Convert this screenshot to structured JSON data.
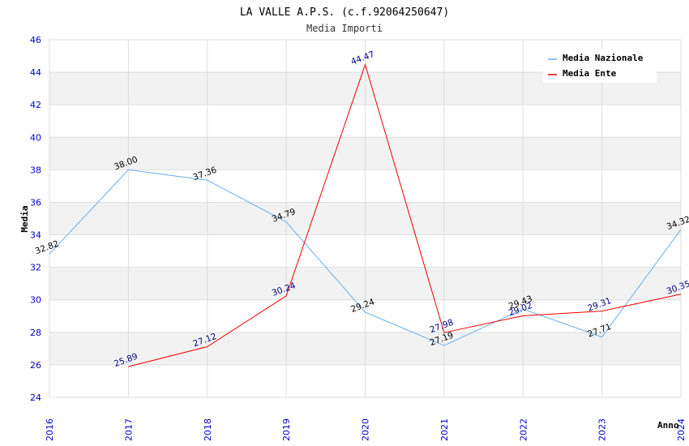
{
  "chart_data": {
    "type": "line",
    "title": "LA VALLE A.P.S. (c.f.92064250647)",
    "subtitle": "Media Importi",
    "xlabel": "Anno",
    "ylabel": "Media",
    "ylim": [
      24,
      46
    ],
    "ytick_step": 2,
    "yticks": [
      "24",
      "26",
      "28",
      "30",
      "32",
      "34",
      "36",
      "38",
      "40",
      "42",
      "44",
      "46"
    ],
    "categories": [
      "2016",
      "2017",
      "2018",
      "2019",
      "2020",
      "2021",
      "2022",
      "2023",
      "2024"
    ],
    "legend_position": "top-right",
    "series": [
      {
        "name": "Media Nazionale",
        "color": "#6aaee8",
        "label_color": "#000000",
        "values": [
          32.82,
          38.0,
          37.36,
          34.79,
          29.24,
          27.19,
          29.43,
          27.71,
          34.32
        ],
        "labels": [
          "32.82",
          "38.00",
          "37.36",
          "34.79",
          "29.24",
          "27.19",
          "29.43",
          "27.71",
          "34.32"
        ]
      },
      {
        "name": "Media Ente",
        "color": "#ee0000",
        "label_color": "#000080",
        "values": [
          null,
          25.89,
          27.12,
          30.24,
          44.47,
          27.98,
          29.02,
          29.31,
          30.35
        ],
        "labels": [
          null,
          "25.89",
          "27.12",
          "30.24",
          "44.47",
          "27.98",
          "29.02",
          "29.31",
          "30.35"
        ]
      }
    ]
  }
}
